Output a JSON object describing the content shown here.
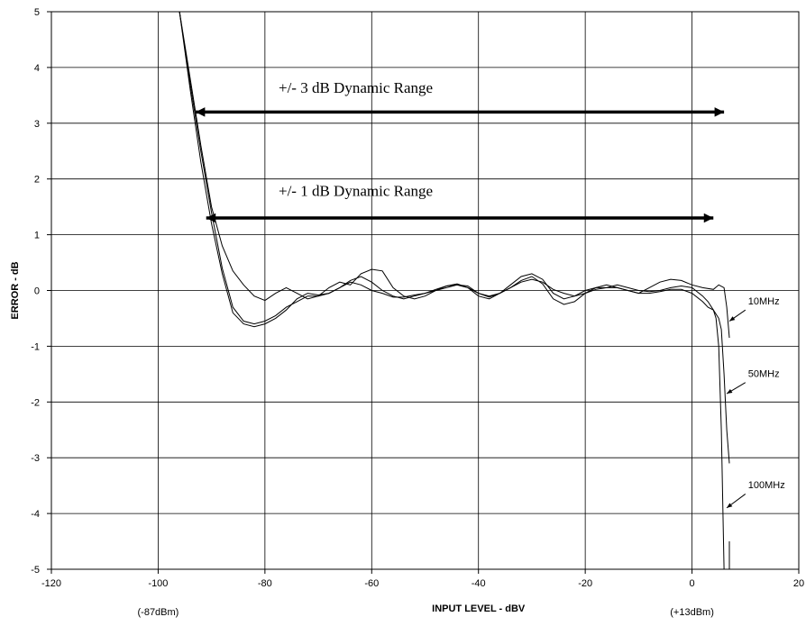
{
  "chart_data": {
    "type": "line",
    "xlabel": "INPUT LEVEL - dBV",
    "ylabel": "ERROR - dB",
    "xlim": [
      -120,
      20
    ],
    "ylim": [
      -5,
      5
    ],
    "x_ticks": [
      -120,
      -100,
      -80,
      -60,
      -40,
      -20,
      0,
      20
    ],
    "x_tick_labels": [
      "-120",
      "-100",
      "-80",
      "-60",
      "-40",
      "-20",
      "0",
      "20"
    ],
    "y_ticks": [
      -5,
      -4,
      -3,
      -2,
      -1,
      0,
      1,
      2,
      3,
      4,
      5
    ],
    "y_tick_labels": [
      "-5",
      "-4",
      "-3",
      "-2",
      "-1",
      "0",
      "1",
      "2",
      "3",
      "4",
      "5"
    ],
    "grid": true,
    "legend": "none",
    "x_annotations": [
      {
        "text": "(-87dBm)",
        "x": -100
      },
      {
        "text": "(+13dBm)",
        "x": 0
      }
    ],
    "annotations": [
      {
        "text": "+/- 3 dB Dynamic Range",
        "x_text": -63,
        "y_text": 3.55,
        "x_from": -93,
        "x_to": 6,
        "y": 3.2
      },
      {
        "text": "+/- 1 dB Dynamic Range",
        "x_text": -63,
        "y_text": 1.7,
        "x_from": -91,
        "x_to": 4,
        "y": 1.3
      }
    ],
    "series": [
      {
        "name": "10MHz",
        "label_pos": [
          10.5,
          -0.25
        ],
        "arrow_from": [
          10,
          -0.35
        ],
        "arrow_to": [
          7,
          -0.55
        ],
        "points": [
          [
            -96,
            5
          ],
          [
            -94,
            3.8
          ],
          [
            -92,
            2.6
          ],
          [
            -90,
            1.5
          ],
          [
            -88,
            0.8
          ],
          [
            -86,
            0.35
          ],
          [
            -84,
            0.1
          ],
          [
            -82,
            -0.1
          ],
          [
            -80,
            -0.18
          ],
          [
            -78,
            -0.05
          ],
          [
            -76,
            0.05
          ],
          [
            -74,
            -0.05
          ],
          [
            -72,
            -0.15
          ],
          [
            -70,
            -0.1
          ],
          [
            -68,
            0.05
          ],
          [
            -66,
            0.15
          ],
          [
            -64,
            0.1
          ],
          [
            -62,
            0.3
          ],
          [
            -60,
            0.38
          ],
          [
            -58,
            0.35
          ],
          [
            -56,
            0.05
          ],
          [
            -54,
            -0.1
          ],
          [
            -52,
            -0.15
          ],
          [
            -50,
            -0.1
          ],
          [
            -48,
            0
          ],
          [
            -46,
            0.08
          ],
          [
            -44,
            0.12
          ],
          [
            -42,
            0.05
          ],
          [
            -40,
            -0.1
          ],
          [
            -38,
            -0.15
          ],
          [
            -36,
            -0.05
          ],
          [
            -34,
            0.1
          ],
          [
            -32,
            0.25
          ],
          [
            -30,
            0.3
          ],
          [
            -28,
            0.2
          ],
          [
            -26,
            -0.05
          ],
          [
            -24,
            -0.15
          ],
          [
            -22,
            -0.1
          ],
          [
            -20,
            0
          ],
          [
            -18,
            0.05
          ],
          [
            -16,
            0.1
          ],
          [
            -14,
            0.05
          ],
          [
            -12,
            0
          ],
          [
            -10,
            -0.05
          ],
          [
            -8,
            0.05
          ],
          [
            -6,
            0.15
          ],
          [
            -4,
            0.2
          ],
          [
            -2,
            0.18
          ],
          [
            0,
            0.1
          ],
          [
            2,
            0.05
          ],
          [
            4,
            0.02
          ],
          [
            5,
            0.1
          ],
          [
            6,
            0.05
          ],
          [
            6.5,
            -0.3
          ],
          [
            7,
            -0.85
          ]
        ]
      },
      {
        "name": "50MHz",
        "label_pos": [
          10.5,
          -1.55
        ],
        "arrow_from": [
          10,
          -1.65
        ],
        "arrow_to": [
          6.5,
          -1.85
        ],
        "points": [
          [
            -96,
            5
          ],
          [
            -94,
            3.7
          ],
          [
            -92,
            2.5
          ],
          [
            -90,
            1.4
          ],
          [
            -88,
            0.4
          ],
          [
            -86,
            -0.3
          ],
          [
            -84,
            -0.55
          ],
          [
            -82,
            -0.6
          ],
          [
            -80,
            -0.55
          ],
          [
            -78,
            -0.45
          ],
          [
            -76,
            -0.3
          ],
          [
            -74,
            -0.2
          ],
          [
            -72,
            -0.1
          ],
          [
            -70,
            -0.1
          ],
          [
            -68,
            -0.05
          ],
          [
            -66,
            0.05
          ],
          [
            -64,
            0.15
          ],
          [
            -62,
            0.1
          ],
          [
            -60,
            0
          ],
          [
            -58,
            -0.05
          ],
          [
            -56,
            -0.12
          ],
          [
            -54,
            -0.12
          ],
          [
            -52,
            -0.08
          ],
          [
            -50,
            -0.05
          ],
          [
            -48,
            0.02
          ],
          [
            -46,
            0.08
          ],
          [
            -44,
            0.1
          ],
          [
            -42,
            0.05
          ],
          [
            -40,
            -0.05
          ],
          [
            -38,
            -0.1
          ],
          [
            -36,
            -0.05
          ],
          [
            -34,
            0.05
          ],
          [
            -32,
            0.15
          ],
          [
            -30,
            0.2
          ],
          [
            -28,
            0.15
          ],
          [
            -26,
            0.02
          ],
          [
            -24,
            -0.05
          ],
          [
            -22,
            -0.1
          ],
          [
            -20,
            -0.05
          ],
          [
            -18,
            0.02
          ],
          [
            -16,
            0.05
          ],
          [
            -14,
            0.1
          ],
          [
            -12,
            0.05
          ],
          [
            -10,
            0
          ],
          [
            -8,
            -0.02
          ],
          [
            -6,
            0
          ],
          [
            -4,
            0.05
          ],
          [
            -2,
            0.08
          ],
          [
            0,
            0.05
          ],
          [
            2,
            -0.1
          ],
          [
            3,
            -0.2
          ],
          [
            4,
            -0.35
          ],
          [
            5,
            -0.5
          ],
          [
            5.5,
            -0.7
          ],
          [
            6,
            -1.5
          ],
          [
            6.5,
            -2.5
          ],
          [
            7,
            -3.1
          ]
        ]
      },
      {
        "name": "100MHz",
        "label_pos": [
          10.5,
          -3.55
        ],
        "arrow_from": [
          10,
          -3.65
        ],
        "arrow_to": [
          6.5,
          -3.9
        ],
        "points": [
          [
            -96,
            5
          ],
          [
            -94,
            3.6
          ],
          [
            -92,
            2.3
          ],
          [
            -90,
            1.2
          ],
          [
            -88,
            0.3
          ],
          [
            -86,
            -0.4
          ],
          [
            -84,
            -0.6
          ],
          [
            -82,
            -0.65
          ],
          [
            -80,
            -0.6
          ],
          [
            -78,
            -0.5
          ],
          [
            -76,
            -0.35
          ],
          [
            -74,
            -0.15
          ],
          [
            -72,
            -0.05
          ],
          [
            -70,
            -0.08
          ],
          [
            -68,
            -0.05
          ],
          [
            -66,
            0.05
          ],
          [
            -64,
            0.18
          ],
          [
            -62,
            0.25
          ],
          [
            -60,
            0.15
          ],
          [
            -58,
            0
          ],
          [
            -56,
            -0.1
          ],
          [
            -54,
            -0.15
          ],
          [
            -52,
            -0.1
          ],
          [
            -50,
            -0.05
          ],
          [
            -48,
            0
          ],
          [
            -46,
            0.05
          ],
          [
            -44,
            0.1
          ],
          [
            -42,
            0.08
          ],
          [
            -40,
            -0.05
          ],
          [
            -38,
            -0.12
          ],
          [
            -36,
            -0.05
          ],
          [
            -34,
            0.05
          ],
          [
            -32,
            0.18
          ],
          [
            -30,
            0.25
          ],
          [
            -28,
            0.12
          ],
          [
            -26,
            -0.15
          ],
          [
            -24,
            -0.25
          ],
          [
            -22,
            -0.2
          ],
          [
            -20,
            -0.05
          ],
          [
            -18,
            0.05
          ],
          [
            -16,
            0.05
          ],
          [
            -14,
            0.05
          ],
          [
            -12,
            0
          ],
          [
            -10,
            -0.05
          ],
          [
            -8,
            -0.05
          ],
          [
            -6,
            -0.02
          ],
          [
            -4,
            0.02
          ],
          [
            -2,
            0.02
          ],
          [
            0,
            -0.05
          ],
          [
            2,
            -0.2
          ],
          [
            3,
            -0.3
          ],
          [
            4,
            -0.35
          ],
          [
            4.5,
            -0.5
          ],
          [
            5,
            -1
          ],
          [
            5.5,
            -2.5
          ],
          [
            5.8,
            -4
          ],
          [
            6,
            -5
          ]
        ]
      }
    ],
    "fragments": [
      {
        "points": [
          [
            7,
            -4.5
          ],
          [
            7,
            -5
          ]
        ]
      }
    ]
  }
}
